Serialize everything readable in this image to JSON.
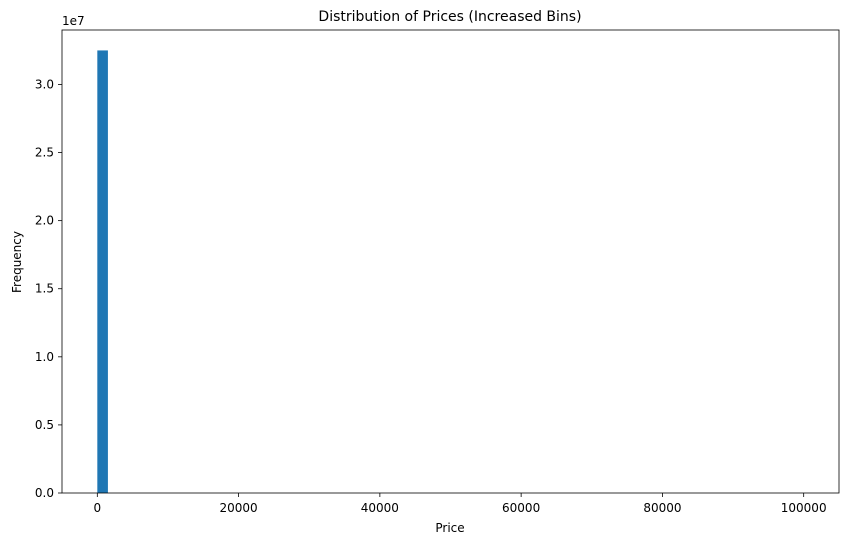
{
  "chart_data": {
    "type": "bar",
    "title": "Distribution of Prices (Increased Bins)",
    "xlabel": "Price",
    "ylabel": "Frequency",
    "y_offset_label": "1e7",
    "xlim": [
      -5000,
      105000
    ],
    "ylim": [
      0,
      34000000
    ],
    "x_ticks": [
      0,
      20000,
      40000,
      60000,
      80000,
      100000
    ],
    "x_tick_labels": [
      "0",
      "20000",
      "40000",
      "60000",
      "80000",
      "100000"
    ],
    "y_ticks": [
      0,
      5000000,
      10000000,
      15000000,
      20000000,
      25000000,
      30000000
    ],
    "y_tick_labels": [
      "0.0",
      "0.5",
      "1.0",
      "1.5",
      "2.0",
      "2.5",
      "3.0"
    ],
    "bins": [
      {
        "x0": 0,
        "x1": 1500,
        "value": 32500000
      }
    ],
    "grid": false,
    "colors": {
      "bar": "#1f77b4",
      "axis": "#000000",
      "background": "#ffffff"
    }
  }
}
